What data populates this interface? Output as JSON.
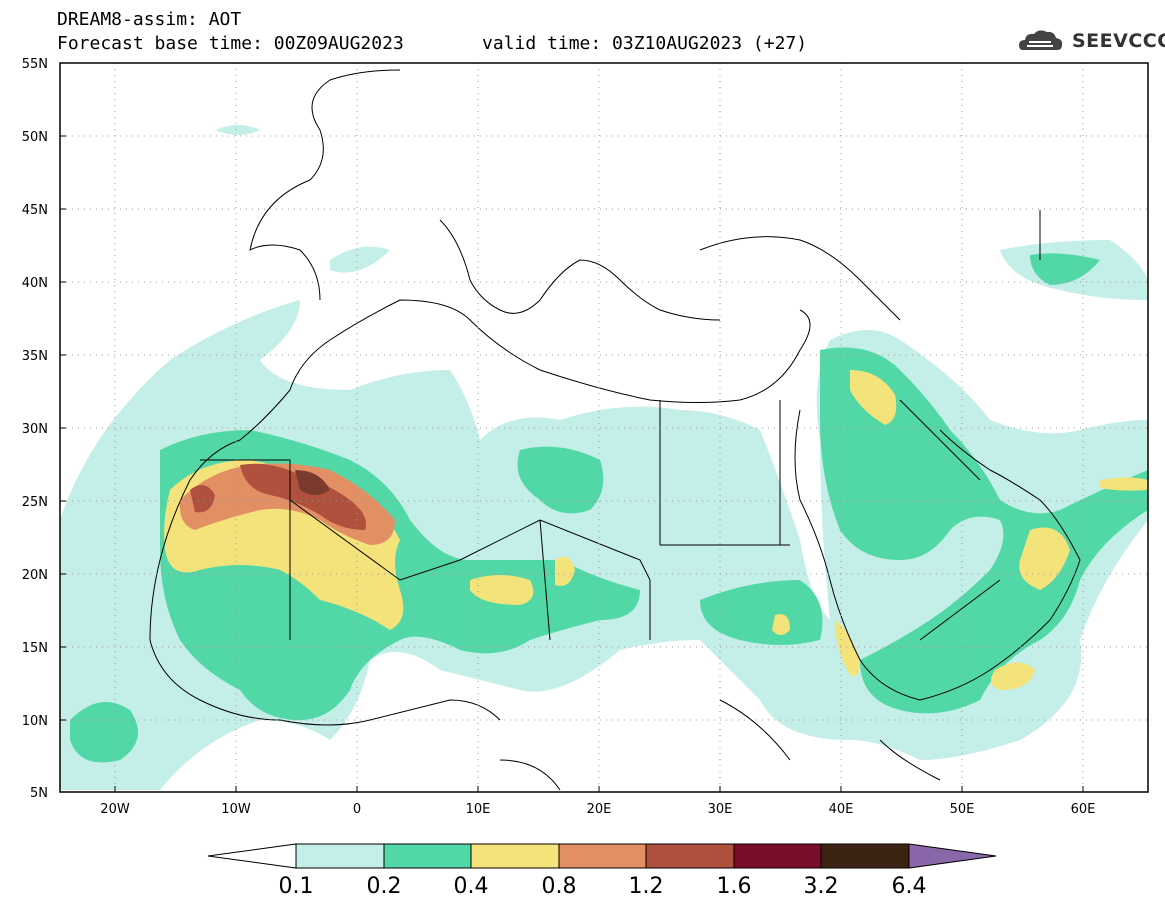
{
  "header": {
    "title": "DREAM8-assim: AOT",
    "base_time": "Forecast base time: 00Z09AUG2023",
    "valid_time": "valid time: 03Z10AUG2023 (+27)",
    "logo_text": "SEEVCCC"
  },
  "map": {
    "lon_range": [
      -25,
      65
    ],
    "lat_range": [
      5,
      55
    ],
    "lat_labels": [
      "55N",
      "50N",
      "45N",
      "40N",
      "35N",
      "30N",
      "25N",
      "20N",
      "15N",
      "10N",
      "5N"
    ],
    "lon_labels": [
      "20W",
      "10W",
      "0",
      "10E",
      "20E",
      "30E",
      "40E",
      "50E",
      "60E"
    ],
    "background": "#ffffff"
  },
  "colorbar": {
    "labels": [
      "0.1",
      "0.2",
      "0.4",
      "0.8",
      "1.2",
      "1.6",
      "3.2",
      "6.4"
    ],
    "colors": [
      "#c4eee8",
      "#52d7a6",
      "#f4e27a",
      "#e38f64",
      "#b0513e",
      "#7a0d2a",
      "#3b2414",
      "#8a67a8"
    ],
    "left_arrow_color": "#ffffff"
  }
}
